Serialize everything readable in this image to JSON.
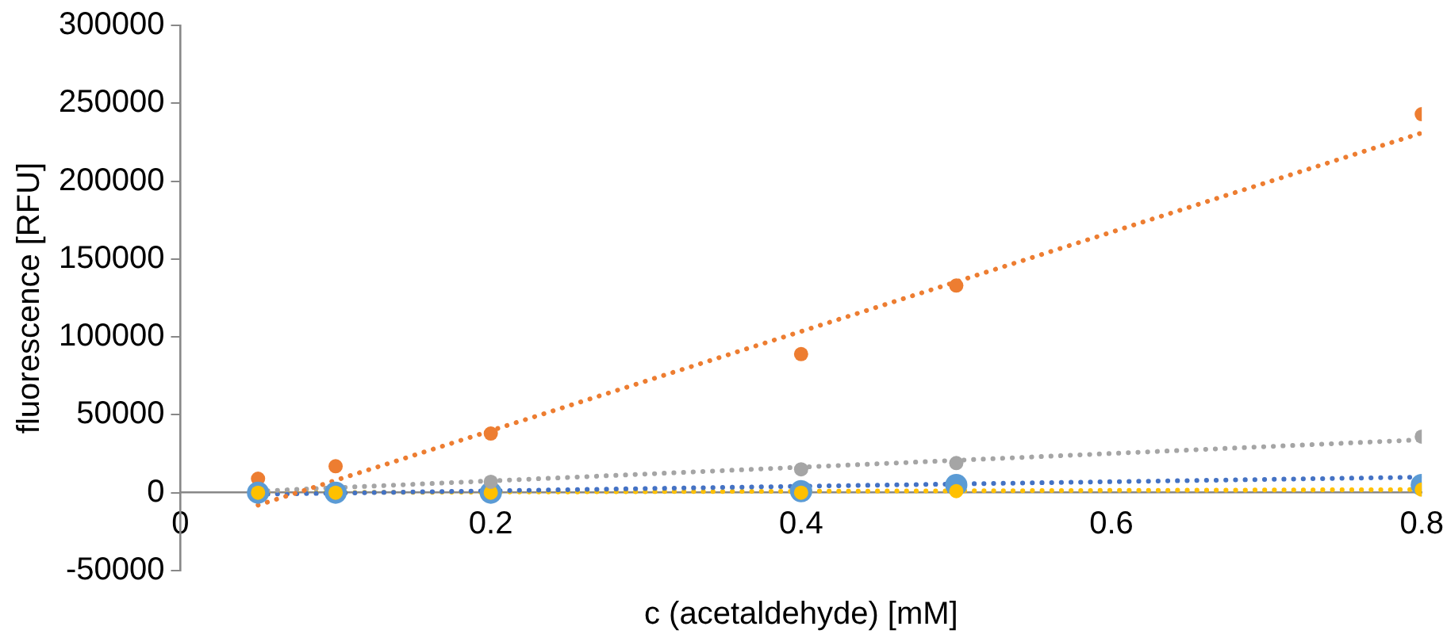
{
  "chart_data": {
    "type": "scatter",
    "xlabel": "c (acetaldehyde) [mM]",
    "ylabel": "fluorescence [RFU]",
    "xlim": [
      0,
      0.8
    ],
    "xticks": [
      0,
      0.2,
      0.4,
      0.6,
      0.8
    ],
    "ylim": [
      -50000,
      300000
    ],
    "yticks": [
      -50000,
      0,
      50000,
      100000,
      150000,
      200000,
      250000,
      300000
    ],
    "grid": false,
    "legend": false,
    "marker": "circle",
    "series": [
      {
        "color": "#ed7d31",
        "x": [
          0.05,
          0.1,
          0.2,
          0.4,
          0.5,
          0.8
        ],
        "values": [
          9000,
          17000,
          38000,
          89000,
          133000,
          243000
        ]
      },
      {
        "color": "#a5a5a5",
        "x": [
          0.2,
          0.4,
          0.5,
          0.8
        ],
        "values": [
          7000,
          15000,
          19000,
          36000
        ]
      },
      {
        "color": "#5b9bd5",
        "x": [
          0.05,
          0.1,
          0.2,
          0.4,
          0.5,
          0.8
        ],
        "values": [
          0,
          0,
          0,
          1000,
          5000,
          5000
        ]
      },
      {
        "color": "#ffc000",
        "x": [
          0.05,
          0.1,
          0.2,
          0.4,
          0.5,
          0.8
        ],
        "values": [
          0,
          0,
          0,
          0,
          1000,
          2000
        ]
      },
      {
        "type": "line",
        "line_style": "dotted",
        "marker": "none",
        "color": "#ed7d31",
        "x": [
          0.05,
          0.8
        ],
        "values": [
          -8000,
          231000
        ]
      },
      {
        "type": "line",
        "line_style": "dotted",
        "marker": "none",
        "color": "#a5a5a5",
        "x": [
          0.05,
          0.8
        ],
        "values": [
          1000,
          34000
        ]
      },
      {
        "type": "line",
        "line_style": "dotted",
        "marker": "none",
        "color": "#4472c4",
        "x": [
          0.05,
          0.8
        ],
        "values": [
          -1000,
          10000
        ]
      },
      {
        "type": "line",
        "line_style": "dotted",
        "marker": "none",
        "color": "#ffc000",
        "x": [
          0.05,
          0.8
        ],
        "values": [
          0,
          2000
        ]
      }
    ]
  }
}
